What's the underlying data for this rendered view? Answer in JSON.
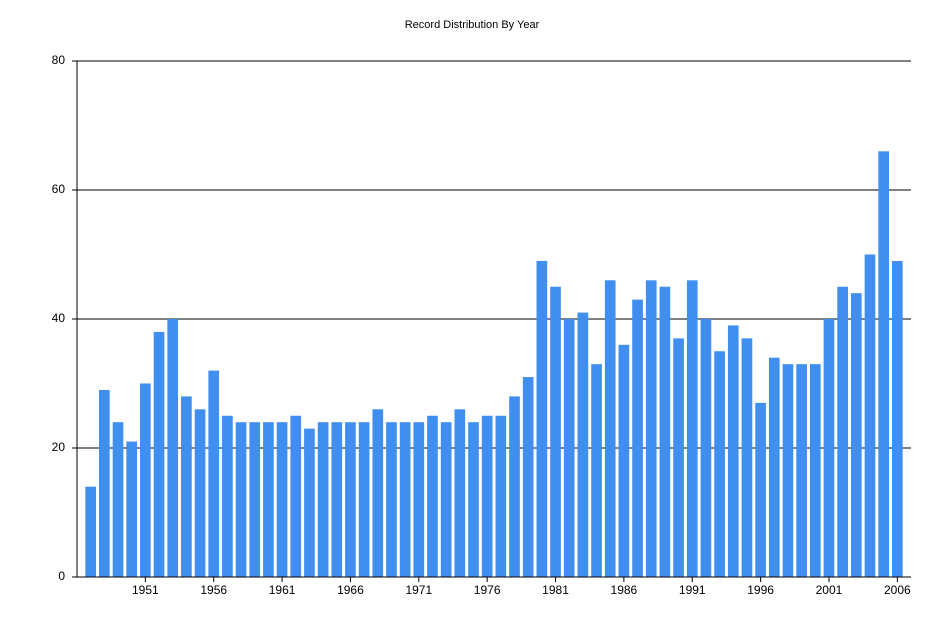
{
  "chart_data": {
    "type": "bar",
    "title": "Record Distribution By Year",
    "categories": [
      null,
      null,
      null,
      null,
      1951,
      null,
      null,
      null,
      null,
      1956,
      null,
      null,
      null,
      null,
      1961,
      null,
      null,
      null,
      null,
      1966,
      null,
      null,
      null,
      null,
      1971,
      null,
      null,
      null,
      null,
      1976,
      null,
      null,
      null,
      null,
      1981,
      null,
      null,
      null,
      null,
      1986,
      null,
      null,
      null,
      null,
      1991,
      null,
      null,
      null,
      null,
      1996,
      null,
      null,
      null,
      null,
      2001,
      null,
      null,
      null,
      null,
      2006
    ],
    "values": [
      14,
      29,
      24,
      21,
      30,
      38,
      40,
      28,
      26,
      32,
      25,
      24,
      24,
      24,
      24,
      25,
      23,
      24,
      24,
      24,
      24,
      26,
      24,
      24,
      24,
      25,
      24,
      26,
      24,
      25,
      25,
      28,
      31,
      49,
      45,
      40,
      41,
      33,
      46,
      36,
      43,
      46,
      45,
      37,
      46,
      40,
      35,
      39,
      37,
      27,
      34,
      33,
      33,
      33,
      40,
      45,
      44,
      50,
      66,
      49
    ],
    "color": "#3f8ef0",
    "ylim": [
      0,
      80
    ],
    "yticks": [
      0,
      20,
      40,
      60,
      80
    ],
    "grid": true
  }
}
